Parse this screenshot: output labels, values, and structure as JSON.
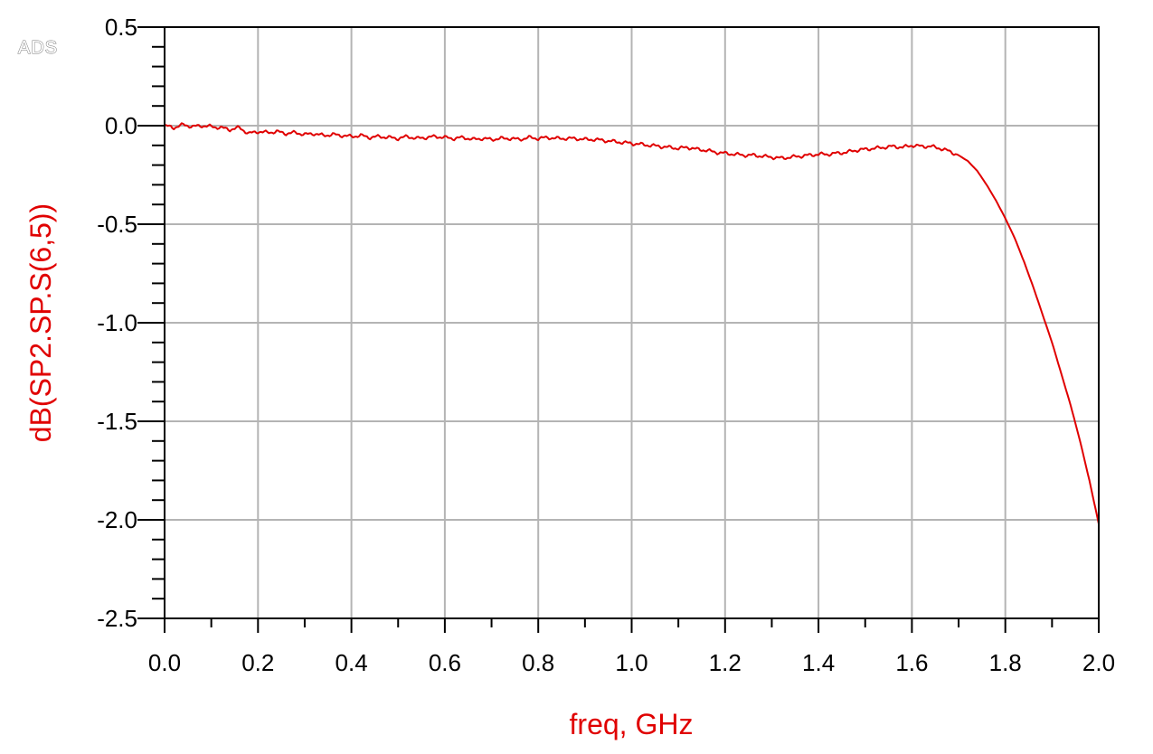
{
  "brand": "ADS",
  "colors": {
    "series": "#e00000",
    "axis_label": "#e00000",
    "grid": "#b4b4b4",
    "frame": "#000000"
  },
  "chart_data": {
    "type": "line",
    "title": "",
    "xlabel": "freq, GHz",
    "ylabel": "dB(SP2.SP.S(6,5))",
    "xlim": [
      0.0,
      2.0
    ],
    "ylim": [
      -2.5,
      0.5
    ],
    "grid": true,
    "legend": "none",
    "x_ticks": [
      "0.0",
      "0.2",
      "0.4",
      "0.6",
      "0.8",
      "1.0",
      "1.2",
      "1.4",
      "1.6",
      "1.8",
      "2.0"
    ],
    "y_ticks": [
      "0.5",
      "0.0",
      "-0.5",
      "-1.0",
      "-1.5",
      "-2.0",
      "-2.5"
    ],
    "series": [
      {
        "x": [
          0.0,
          0.02,
          0.04,
          0.06,
          0.08,
          0.1,
          0.12,
          0.14,
          0.16,
          0.18,
          0.2,
          0.22,
          0.24,
          0.26,
          0.28,
          0.3,
          0.32,
          0.34,
          0.36,
          0.38,
          0.4,
          0.42,
          0.44,
          0.46,
          0.48,
          0.5,
          0.52,
          0.54,
          0.56,
          0.58,
          0.6,
          0.62,
          0.64,
          0.66,
          0.68,
          0.7,
          0.72,
          0.74,
          0.76,
          0.78,
          0.8,
          0.82,
          0.84,
          0.86,
          0.88,
          0.9,
          0.92,
          0.94,
          0.96,
          0.98,
          1.0,
          1.02,
          1.04,
          1.06,
          1.08,
          1.1,
          1.12,
          1.14,
          1.16,
          1.18,
          1.2,
          1.22,
          1.24,
          1.26,
          1.28,
          1.3,
          1.32,
          1.34,
          1.36,
          1.38,
          1.4,
          1.42,
          1.44,
          1.46,
          1.48,
          1.5,
          1.52,
          1.54,
          1.56,
          1.58,
          1.6,
          1.62,
          1.64,
          1.66,
          1.68,
          1.7,
          1.72,
          1.74,
          1.76,
          1.78,
          1.8,
          1.82,
          1.84,
          1.86,
          1.88,
          1.9,
          1.92,
          1.94,
          1.96,
          1.98,
          2.0
        ],
        "y": [
          0.0,
          -0.01,
          0.005,
          -0.005,
          0.0,
          -0.005,
          -0.01,
          -0.02,
          -0.01,
          -0.04,
          -0.03,
          -0.035,
          -0.03,
          -0.04,
          -0.035,
          -0.045,
          -0.04,
          -0.05,
          -0.045,
          -0.05,
          -0.055,
          -0.05,
          -0.06,
          -0.055,
          -0.06,
          -0.065,
          -0.055,
          -0.065,
          -0.06,
          -0.055,
          -0.06,
          -0.065,
          -0.06,
          -0.07,
          -0.065,
          -0.07,
          -0.065,
          -0.065,
          -0.07,
          -0.06,
          -0.065,
          -0.06,
          -0.065,
          -0.065,
          -0.065,
          -0.07,
          -0.07,
          -0.075,
          -0.08,
          -0.085,
          -0.09,
          -0.095,
          -0.1,
          -0.105,
          -0.11,
          -0.115,
          -0.11,
          -0.12,
          -0.125,
          -0.135,
          -0.14,
          -0.145,
          -0.15,
          -0.15,
          -0.155,
          -0.16,
          -0.165,
          -0.16,
          -0.155,
          -0.15,
          -0.145,
          -0.145,
          -0.14,
          -0.135,
          -0.125,
          -0.12,
          -0.115,
          -0.11,
          -0.105,
          -0.11,
          -0.1,
          -0.105,
          -0.105,
          -0.115,
          -0.13,
          -0.15,
          -0.18,
          -0.23,
          -0.3,
          -0.38,
          -0.47,
          -0.57,
          -0.69,
          -0.82,
          -0.96,
          -1.1,
          -1.26,
          -1.42,
          -1.6,
          -1.8,
          -2.02
        ]
      }
    ]
  }
}
